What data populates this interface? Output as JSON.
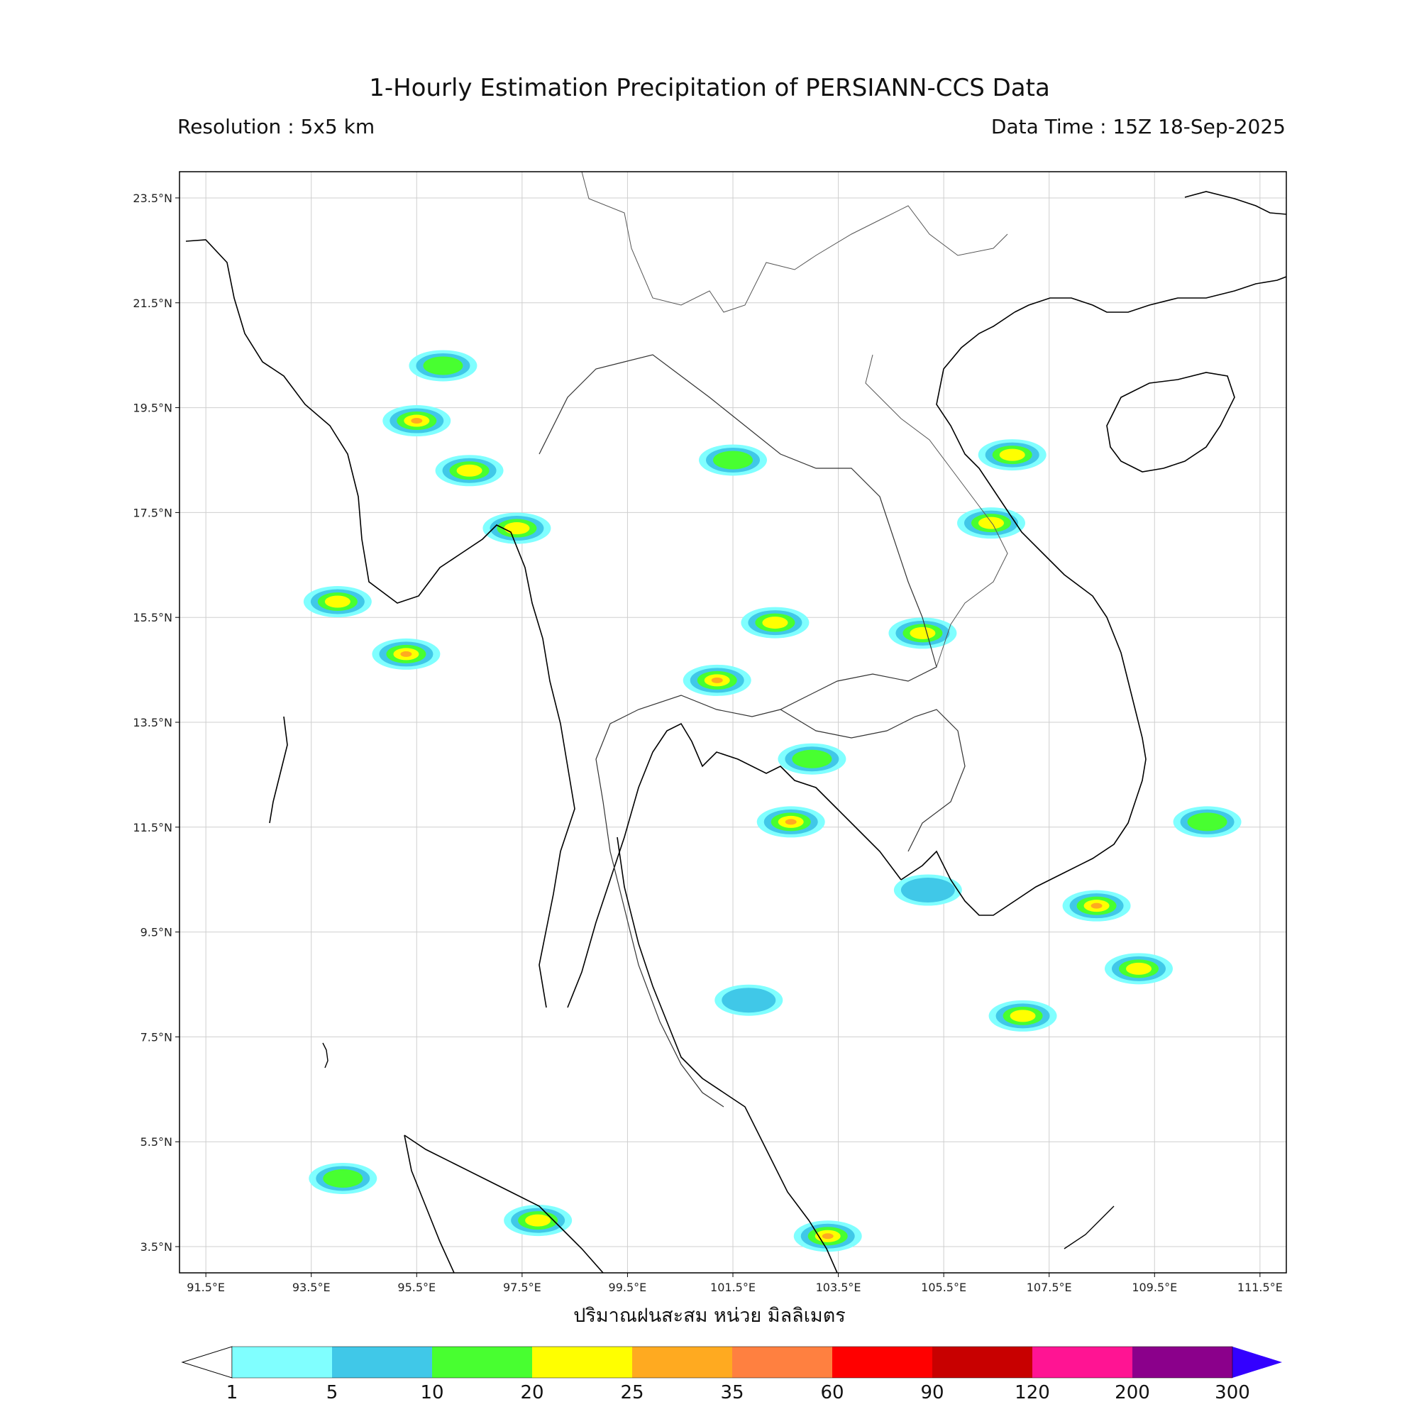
{
  "header": {
    "title": "1-Hourly Estimation Precipitation of PERSIANN-CCS Data",
    "resolution": "Resolution : 5x5 km",
    "data_time": "Data Time : 15Z 18-Sep-2025"
  },
  "map": {
    "lon_range": [
      91.0,
      112.0
    ],
    "lat_range": [
      3.0,
      24.0
    ],
    "lat_ticks": [
      "23.5°N",
      "21.5°N",
      "19.5°N",
      "17.5°N",
      "15.5°N",
      "13.5°N",
      "11.5°N",
      "9.5°N",
      "7.5°N",
      "5.5°N",
      "3.5°N"
    ],
    "lon_ticks": [
      "91.5°E",
      "93.5°E",
      "95.5°E",
      "97.5°E",
      "99.5°E",
      "101.5°E",
      "103.5°E",
      "105.5°E",
      "107.5°E",
      "109.5°E",
      "111.5°E"
    ],
    "gridlines": true,
    "xlabel": "ปริมาณฝนสะสม หน่วย มิลลิเมตร"
  },
  "colorbar": {
    "labels": [
      "1",
      "5",
      "10",
      "20",
      "25",
      "35",
      "60",
      "90",
      "120",
      "200",
      "300"
    ],
    "colors": [
      "#80ffff",
      "#40c8e8",
      "#48ff30",
      "#ffff00",
      "#ffaa20",
      "#ff8040",
      "#ff0000",
      "#c80000",
      "#ff1493",
      "#8b008b"
    ],
    "extend_min_color": "#ffffff",
    "extend_max_color": "#3300ff"
  },
  "rain_cells": [
    {
      "lon": 95.5,
      "lat": 19.25,
      "level": 4
    },
    {
      "lon": 96.5,
      "lat": 18.3,
      "level": 3
    },
    {
      "lon": 97.4,
      "lat": 17.2,
      "level": 3
    },
    {
      "lon": 96.0,
      "lat": 20.3,
      "level": 2
    },
    {
      "lon": 101.5,
      "lat": 18.5,
      "level": 2
    },
    {
      "lon": 101.2,
      "lat": 14.3,
      "level": 4
    },
    {
      "lon": 102.3,
      "lat": 15.4,
      "level": 3
    },
    {
      "lon": 105.1,
      "lat": 15.2,
      "level": 3
    },
    {
      "lon": 95.3,
      "lat": 14.8,
      "level": 4
    },
    {
      "lon": 102.6,
      "lat": 11.6,
      "level": 4
    },
    {
      "lon": 103.0,
      "lat": 12.8,
      "level": 2
    },
    {
      "lon": 106.4,
      "lat": 17.3,
      "level": 3
    },
    {
      "lon": 106.8,
      "lat": 18.6,
      "level": 3
    },
    {
      "lon": 109.2,
      "lat": 8.8,
      "level": 3
    },
    {
      "lon": 110.5,
      "lat": 11.6,
      "level": 2
    },
    {
      "lon": 108.4,
      "lat": 10.0,
      "level": 4
    },
    {
      "lon": 107.0,
      "lat": 7.9,
      "level": 3
    },
    {
      "lon": 97.8,
      "lat": 4.0,
      "level": 3
    },
    {
      "lon": 94.1,
      "lat": 4.8,
      "level": 2
    },
    {
      "lon": 103.3,
      "lat": 3.7,
      "level": 4
    },
    {
      "lon": 101.8,
      "lat": 8.2,
      "level": 1
    },
    {
      "lon": 105.2,
      "lat": 10.3,
      "level": 1
    },
    {
      "lon": 94.0,
      "lat": 15.8,
      "level": 3
    }
  ]
}
